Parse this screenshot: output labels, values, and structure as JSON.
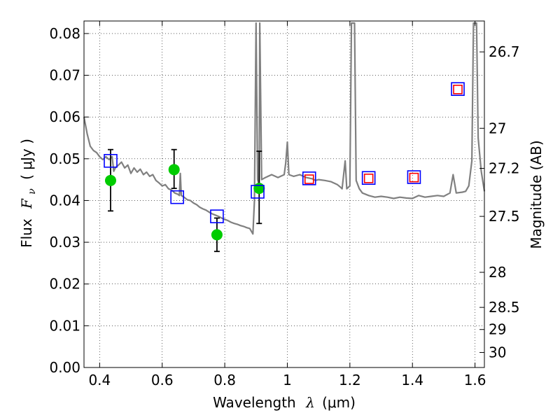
{
  "chart_data": {
    "type": "scatter",
    "xlabel": {
      "prefix": "Wavelength",
      "symbol": "λ",
      "unit": "(μm)"
    },
    "ylabel": {
      "prefix": "Flux",
      "symbol": "F",
      "subscript": "ν",
      "unit": "( μJy )"
    },
    "ylabel_right": "Magnitude (AB)",
    "xlim": [
      0.35,
      1.63
    ],
    "ylim": [
      0.0,
      0.083
    ],
    "grid": true,
    "x_ticks": [
      0.4,
      0.6,
      0.8,
      1.0,
      1.2,
      1.4,
      1.6
    ],
    "x_tick_labels": [
      "0.4",
      "0.6",
      "0.8",
      "1",
      "1.2",
      "1.4",
      "1.6"
    ],
    "y_ticks": [
      0.0,
      0.01,
      0.02,
      0.03,
      0.04,
      0.05,
      0.06,
      0.07,
      0.08
    ],
    "y_tick_labels": [
      "0.00",
      "0.01",
      "0.02",
      "0.03",
      "0.04",
      "0.05",
      "0.06",
      "0.07",
      "0.08"
    ],
    "right_ticks": [
      {
        "label": "26.7",
        "flux": 0.0756
      },
      {
        "label": "27",
        "flux": 0.0573
      },
      {
        "label": "27.2",
        "flux": 0.0477
      },
      {
        "label": "27.5",
        "flux": 0.0362
      },
      {
        "label": "28",
        "flux": 0.0228
      },
      {
        "label": "28.5",
        "flux": 0.0144
      },
      {
        "label": "29",
        "flux": 0.0091
      },
      {
        "label": "30",
        "flux": 0.0036
      }
    ],
    "series": [
      {
        "kind": "line",
        "color": "#808080",
        "points": [
          [
            0.35,
            0.06
          ],
          [
            0.36,
            0.056
          ],
          [
            0.37,
            0.053
          ],
          [
            0.38,
            0.052
          ],
          [
            0.39,
            0.0515
          ],
          [
            0.4,
            0.0505
          ],
          [
            0.41,
            0.0498
          ],
          [
            0.42,
            0.0505
          ],
          [
            0.43,
            0.0498
          ],
          [
            0.44,
            0.0505
          ],
          [
            0.445,
            0.047
          ],
          [
            0.45,
            0.0478
          ],
          [
            0.46,
            0.0485
          ],
          [
            0.47,
            0.0492
          ],
          [
            0.48,
            0.0478
          ],
          [
            0.49,
            0.0485
          ],
          [
            0.5,
            0.0465
          ],
          [
            0.51,
            0.0478
          ],
          [
            0.52,
            0.0468
          ],
          [
            0.53,
            0.0475
          ],
          [
            0.54,
            0.0462
          ],
          [
            0.55,
            0.0468
          ],
          [
            0.56,
            0.0458
          ],
          [
            0.57,
            0.0462
          ],
          [
            0.58,
            0.0448
          ],
          [
            0.59,
            0.0442
          ],
          [
            0.6,
            0.0435
          ],
          [
            0.61,
            0.0438
          ],
          [
            0.62,
            0.0428
          ],
          [
            0.63,
            0.0425
          ],
          [
            0.64,
            0.0418
          ],
          [
            0.65,
            0.0415
          ],
          [
            0.655,
            0.0412
          ],
          [
            0.658,
            0.0465
          ],
          [
            0.661,
            0.0412
          ],
          [
            0.67,
            0.0408
          ],
          [
            0.68,
            0.0402
          ],
          [
            0.69,
            0.04
          ],
          [
            0.7,
            0.0394
          ],
          [
            0.71,
            0.039
          ],
          [
            0.72,
            0.0384
          ],
          [
            0.73,
            0.038
          ],
          [
            0.74,
            0.0377
          ],
          [
            0.75,
            0.0372
          ],
          [
            0.76,
            0.0368
          ],
          [
            0.77,
            0.0365
          ],
          [
            0.78,
            0.0362
          ],
          [
            0.79,
            0.0358
          ],
          [
            0.8,
            0.0355
          ],
          [
            0.81,
            0.0352
          ],
          [
            0.82,
            0.0348
          ],
          [
            0.83,
            0.0345
          ],
          [
            0.84,
            0.0343
          ],
          [
            0.85,
            0.034
          ],
          [
            0.86,
            0.0338
          ],
          [
            0.87,
            0.0335
          ],
          [
            0.88,
            0.0333
          ],
          [
            0.89,
            0.032
          ],
          [
            0.895,
            0.04
          ],
          [
            0.9,
            0.0825
          ],
          [
            0.905,
            0.045
          ],
          [
            0.91,
            0.0435
          ],
          [
            0.912,
            0.0825
          ],
          [
            0.918,
            0.045
          ],
          [
            0.93,
            0.0455
          ],
          [
            0.95,
            0.0462
          ],
          [
            0.97,
            0.0455
          ],
          [
            0.99,
            0.0462
          ],
          [
            0.995,
            0.049
          ],
          [
            1.0,
            0.054
          ],
          [
            1.005,
            0.0462
          ],
          [
            1.02,
            0.0458
          ],
          [
            1.04,
            0.0462
          ],
          [
            1.06,
            0.0455
          ],
          [
            1.08,
            0.0452
          ],
          [
            1.09,
            0.0448
          ],
          [
            1.1,
            0.045
          ],
          [
            1.12,
            0.0448
          ],
          [
            1.14,
            0.0445
          ],
          [
            1.16,
            0.0438
          ],
          [
            1.17,
            0.0432
          ],
          [
            1.175,
            0.0428
          ],
          [
            1.185,
            0.0495
          ],
          [
            1.19,
            0.0428
          ],
          [
            1.2,
            0.0435
          ],
          [
            1.205,
            0.0825
          ],
          [
            1.215,
            0.0825
          ],
          [
            1.22,
            0.0448
          ],
          [
            1.23,
            0.0428
          ],
          [
            1.24,
            0.0418
          ],
          [
            1.26,
            0.0412
          ],
          [
            1.28,
            0.0408
          ],
          [
            1.3,
            0.041
          ],
          [
            1.32,
            0.0408
          ],
          [
            1.34,
            0.0405
          ],
          [
            1.36,
            0.0408
          ],
          [
            1.38,
            0.0406
          ],
          [
            1.4,
            0.0405
          ],
          [
            1.42,
            0.0412
          ],
          [
            1.44,
            0.0408
          ],
          [
            1.46,
            0.041
          ],
          [
            1.48,
            0.0412
          ],
          [
            1.5,
            0.041
          ],
          [
            1.52,
            0.0418
          ],
          [
            1.53,
            0.0462
          ],
          [
            1.54,
            0.0418
          ],
          [
            1.56,
            0.042
          ],
          [
            1.57,
            0.0422
          ],
          [
            1.58,
            0.0435
          ],
          [
            1.59,
            0.0495
          ],
          [
            1.595,
            0.0825
          ],
          [
            1.605,
            0.0825
          ],
          [
            1.61,
            0.055
          ],
          [
            1.62,
            0.047
          ],
          [
            1.63,
            0.0422
          ]
        ]
      },
      {
        "kind": "points-with-errors",
        "marker": "circle",
        "color": "#00cc00",
        "points": [
          {
            "x": 0.435,
            "y": 0.0448,
            "ylo": 0.0375,
            "yhi": 0.0522
          },
          {
            "x": 0.638,
            "y": 0.0474,
            "ylo": 0.0429,
            "yhi": 0.0522
          },
          {
            "x": 0.775,
            "y": 0.0318,
            "ylo": 0.0278,
            "yhi": 0.0358
          },
          {
            "x": 0.91,
            "y": 0.0429,
            "ylo": 0.0345,
            "yhi": 0.0518
          }
        ]
      },
      {
        "kind": "points",
        "marker": "square",
        "color": "#0000ff",
        "points": [
          [
            0.435,
            0.0495
          ],
          [
            0.648,
            0.0408
          ],
          [
            0.775,
            0.0362
          ],
          [
            0.905,
            0.0421
          ],
          [
            1.07,
            0.0453
          ],
          [
            1.26,
            0.0454
          ],
          [
            1.405,
            0.0456
          ],
          [
            1.545,
            0.0667
          ]
        ]
      },
      {
        "kind": "points",
        "marker": "square",
        "color": "#ff0000",
        "points": [
          [
            1.07,
            0.0451
          ],
          [
            1.26,
            0.0453
          ],
          [
            1.405,
            0.0455
          ],
          [
            1.545,
            0.0666
          ]
        ]
      }
    ]
  }
}
